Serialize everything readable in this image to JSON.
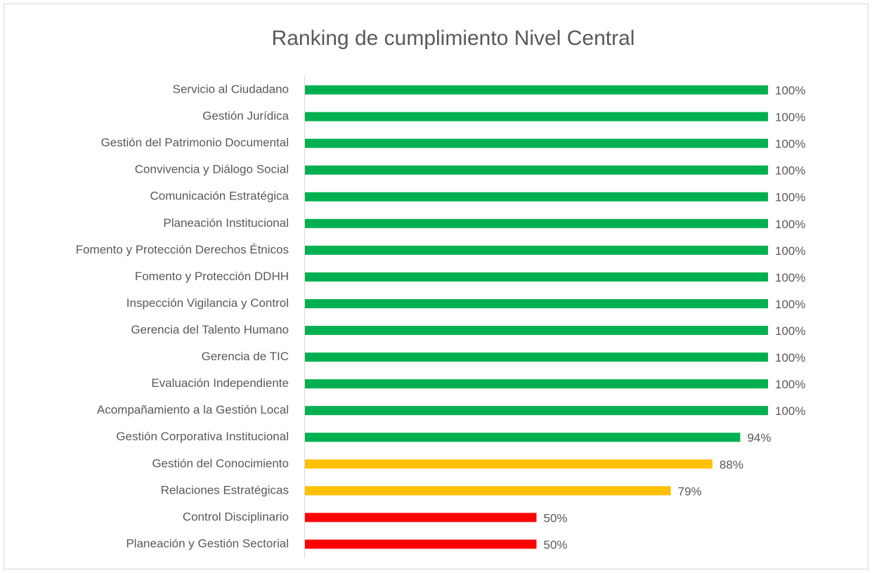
{
  "chart_data": {
    "type": "barh",
    "title": "Ranking de cumplimiento Nivel Central",
    "categories": [
      "Servicio al Ciudadano",
      "Gestión Jurídica",
      "Gestión del Patrimonio Documental",
      "Convivencia y Diálogo Social",
      "Comunicación Estratégica",
      "Planeación Institucional",
      "Fomento y Protección Derechos Étnicos",
      "Fomento y Protección DDHH",
      "Inspección Vigilancia y Control",
      "Gerencia del Talento Humano",
      "Gerencia de TIC",
      "Evaluación Independiente",
      "Acompañamiento a la Gestión Local",
      "Gestión Corporativa Institucional",
      "Gestión del Conocimiento",
      "Relaciones Estratégicas",
      "Control Disciplinario",
      "Planeación y Gestión Sectorial"
    ],
    "values": [
      100,
      100,
      100,
      100,
      100,
      100,
      100,
      100,
      100,
      100,
      100,
      100,
      100,
      94,
      88,
      79,
      50,
      50
    ],
    "value_labels": [
      "100%",
      "100%",
      "100%",
      "100%",
      "100%",
      "100%",
      "100%",
      "100%",
      "100%",
      "100%",
      "100%",
      "100%",
      "100%",
      "94%",
      "88%",
      "79%",
      "50%",
      "50%"
    ],
    "colors": [
      "#00b050",
      "#00b050",
      "#00b050",
      "#00b050",
      "#00b050",
      "#00b050",
      "#00b050",
      "#00b050",
      "#00b050",
      "#00b050",
      "#00b050",
      "#00b050",
      "#00b050",
      "#00b050",
      "#ffc000",
      "#ffc000",
      "#ff0000",
      "#ff0000"
    ],
    "xlim": [
      0,
      100
    ]
  }
}
